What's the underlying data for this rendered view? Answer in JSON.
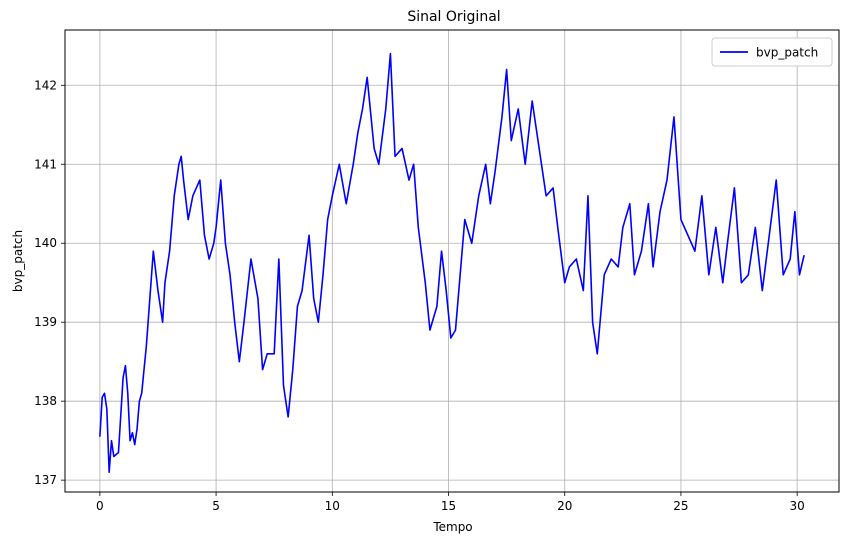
{
  "chart_data": {
    "type": "line",
    "title": "Sinal Original",
    "xlabel": "Tempo",
    "ylabel": "bvp_patch",
    "xlim": [
      -1.5,
      31.8
    ],
    "ylim": [
      136.85,
      142.7
    ],
    "xticks": [
      0,
      5,
      10,
      15,
      20,
      25,
      30
    ],
    "xtick_labels": [
      "0",
      "5",
      "10",
      "15",
      "20",
      "25",
      "30"
    ],
    "yticks": [
      137,
      138,
      139,
      140,
      141,
      142
    ],
    "ytick_labels": [
      "137",
      "138",
      "139",
      "140",
      "141",
      "142"
    ],
    "grid": true,
    "legend": {
      "position": "top-right",
      "entries": [
        "bvp_patch"
      ]
    },
    "series": [
      {
        "name": "bvp_patch",
        "color": "#0000ff",
        "x": [
          0,
          0.1,
          0.2,
          0.3,
          0.4,
          0.5,
          0.6,
          0.8,
          1.0,
          1.1,
          1.2,
          1.3,
          1.4,
          1.5,
          1.6,
          1.7,
          1.8,
          2.0,
          2.2,
          2.3,
          2.5,
          2.7,
          2.8,
          3.0,
          3.2,
          3.4,
          3.5,
          3.6,
          3.8,
          4.0,
          4.3,
          4.5,
          4.7,
          4.9,
          5.0,
          5.2,
          5.4,
          5.6,
          5.8,
          6.0,
          6.2,
          6.5,
          6.8,
          7.0,
          7.2,
          7.5,
          7.7,
          7.9,
          8.1,
          8.3,
          8.5,
          8.7,
          9.0,
          9.2,
          9.4,
          9.6,
          9.8,
          10.0,
          10.3,
          10.6,
          10.9,
          11.1,
          11.3,
          11.5,
          11.8,
          12.0,
          12.3,
          12.5,
          12.7,
          13.0,
          13.3,
          13.5,
          13.7,
          14.0,
          14.2,
          14.5,
          14.7,
          14.9,
          15.1,
          15.3,
          15.5,
          15.7,
          16.0,
          16.3,
          16.6,
          16.8,
          17.0,
          17.3,
          17.5,
          17.7,
          18.0,
          18.3,
          18.6,
          18.9,
          19.2,
          19.5,
          19.7,
          20.0,
          20.2,
          20.5,
          20.8,
          21.0,
          21.2,
          21.4,
          21.7,
          22.0,
          22.3,
          22.5,
          22.8,
          23.0,
          23.3,
          23.6,
          23.8,
          24.1,
          24.4,
          24.7,
          25.0,
          25.3,
          25.6,
          25.9,
          26.2,
          26.5,
          26.8,
          27.0,
          27.3,
          27.6,
          27.9,
          28.2,
          28.5,
          28.8,
          29.1,
          29.4,
          29.7,
          29.9,
          30.1,
          30.3
        ],
        "values": [
          137.55,
          138.05,
          138.1,
          137.9,
          137.1,
          137.5,
          137.3,
          137.35,
          138.3,
          138.45,
          138.1,
          137.5,
          137.6,
          137.45,
          137.65,
          138.0,
          138.1,
          138.7,
          139.5,
          139.9,
          139.4,
          139.0,
          139.5,
          139.9,
          140.6,
          141.0,
          141.1,
          140.8,
          140.3,
          140.6,
          140.8,
          140.1,
          139.8,
          140.0,
          140.2,
          140.8,
          140.0,
          139.6,
          139.0,
          138.5,
          139.0,
          139.8,
          139.3,
          138.4,
          138.6,
          138.6,
          139.8,
          138.2,
          137.8,
          138.4,
          139.2,
          139.4,
          140.1,
          139.3,
          139.0,
          139.6,
          140.3,
          140.6,
          141.0,
          140.5,
          141.0,
          141.4,
          141.7,
          142.1,
          141.2,
          141.0,
          141.7,
          142.4,
          141.1,
          141.2,
          140.8,
          141.0,
          140.2,
          139.5,
          138.9,
          139.2,
          139.9,
          139.4,
          138.8,
          138.9,
          139.6,
          140.3,
          140.0,
          140.6,
          141.0,
          140.5,
          140.9,
          141.6,
          142.2,
          141.3,
          141.7,
          141.0,
          141.8,
          141.2,
          140.6,
          140.7,
          140.2,
          139.5,
          139.7,
          139.8,
          139.4,
          140.6,
          139.0,
          138.6,
          139.6,
          139.8,
          139.7,
          140.2,
          140.5,
          139.6,
          139.9,
          140.5,
          139.7,
          140.4,
          140.8,
          141.6,
          140.3,
          140.1,
          139.9,
          140.6,
          139.6,
          140.2,
          139.5,
          140.0,
          140.7,
          139.5,
          139.6,
          140.2,
          139.4,
          140.1,
          140.8,
          139.6,
          139.8,
          140.4,
          139.6,
          139.85
        ]
      }
    ]
  }
}
